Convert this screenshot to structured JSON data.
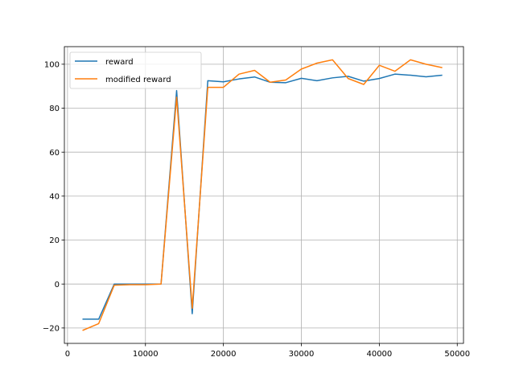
{
  "chart_data": {
    "type": "line",
    "title": "",
    "xlabel": "",
    "ylabel": "",
    "xlim": [
      -400,
      50800
    ],
    "ylim": [
      -27,
      108
    ],
    "xticks": [
      0,
      10000,
      20000,
      30000,
      40000,
      50000
    ],
    "yticks": [
      -20,
      0,
      20,
      40,
      60,
      80,
      100
    ],
    "xtick_labels": [
      "0",
      "10000",
      "20000",
      "30000",
      "40000",
      "50000"
    ],
    "ytick_labels": [
      "−20",
      "0",
      "20",
      "40",
      "60",
      "80",
      "100"
    ],
    "grid": true,
    "legend_position": "top-left",
    "series": [
      {
        "name": "reward",
        "color": "#1f77b4",
        "x": [
          2000,
          4000,
          6000,
          8000,
          10000,
          12000,
          14000,
          16000,
          18000,
          20000,
          22000,
          24000,
          26000,
          28000,
          30000,
          32000,
          34000,
          36000,
          38000,
          40000,
          42000,
          44000,
          46000,
          48000
        ],
        "y": [
          -16,
          -16,
          0,
          0,
          0,
          0,
          88,
          -13.5,
          92.5,
          92,
          93.3,
          94.2,
          91.8,
          91.6,
          93.6,
          92.5,
          93.8,
          94.5,
          92.3,
          93.5,
          95.5,
          95,
          94.3,
          95
        ]
      },
      {
        "name": "modified reward",
        "color": "#ff7f0e",
        "x": [
          2000,
          4000,
          6000,
          8000,
          10000,
          12000,
          14000,
          16000,
          18000,
          20000,
          22000,
          24000,
          26000,
          28000,
          30000,
          32000,
          34000,
          36000,
          38000,
          40000,
          42000,
          44000,
          46000,
          48000
        ],
        "y": [
          -21,
          -18,
          -0.5,
          -0.3,
          -0.3,
          0,
          85,
          -11,
          89.5,
          89.5,
          95.5,
          97.2,
          91.8,
          92.8,
          97.8,
          100.5,
          102,
          93.5,
          90.8,
          99.5,
          96.8,
          102,
          100,
          98.5
        ]
      }
    ]
  }
}
